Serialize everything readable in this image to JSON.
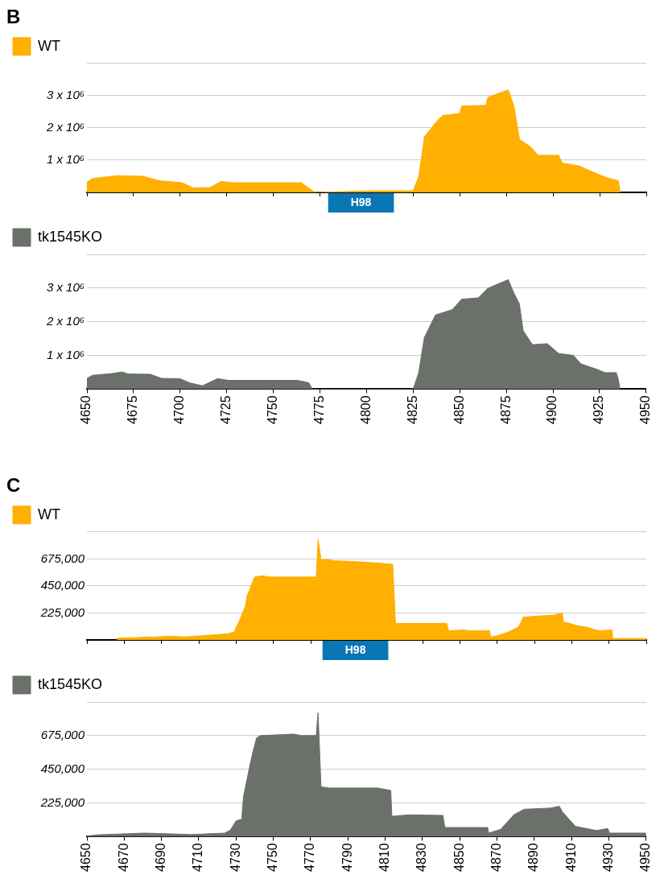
{
  "chart_data": [
    {
      "type": "area",
      "title": "B",
      "legend": "top left",
      "grid": "y",
      "tick_labels": "y",
      "xlim": [
        4650,
        4950
      ],
      "xticks": [
        4650,
        4675,
        4700,
        4725,
        4750,
        4775,
        4800,
        4825,
        4850,
        4875,
        4900,
        4925,
        4950
      ],
      "ylim": [
        0,
        4000000
      ],
      "yticks": [
        {
          "value": 1000000,
          "label": "1 x 10⁶"
        },
        {
          "value": 2000000,
          "label": "2 x 10⁶"
        },
        {
          "value": 3000000,
          "label": "3 x 10⁶"
        },
        {
          "value": 4000000,
          "label": null
        }
      ],
      "annotations": [
        {
          "text": "H98",
          "x": 4797,
          "y": 0
        }
      ],
      "series": [
        {
          "name": "WT",
          "color": "#ffb000",
          "x": [
            4650,
            4653,
            4666,
            4680,
            4689,
            4701,
            4707,
            4716,
            4722,
            4728,
            4765,
            4771,
            4773,
            4802,
            4825,
            4828,
            4831,
            4838,
            4841,
            4850,
            4851,
            4864,
            4865,
            4876,
            4879,
            4882,
            4888,
            4892,
            4903,
            4905,
            4914,
            4921,
            4929,
            4935,
            4936
          ],
          "values": [
            320000,
            430000,
            520000,
            500000,
            360000,
            300000,
            140000,
            150000,
            340000,
            300000,
            300000,
            50000,
            0,
            50000,
            50000,
            500000,
            1730000,
            2230000,
            2390000,
            2450000,
            2680000,
            2700000,
            2950000,
            3180000,
            2680000,
            1640000,
            1410000,
            1150000,
            1150000,
            910000,
            820000,
            640000,
            450000,
            360000,
            0
          ]
        }
      ]
    },
    {
      "type": "area",
      "legend": "top left",
      "grid": "y",
      "xlim": [
        4650,
        4950
      ],
      "xticks": [
        4650,
        4675,
        4700,
        4725,
        4750,
        4775,
        4800,
        4825,
        4850,
        4875,
        4900,
        4925,
        4950
      ],
      "ylim": [
        0,
        4000000
      ],
      "yticks": [
        {
          "value": 1000000,
          "label": "1 x 10⁶"
        },
        {
          "value": 2000000,
          "label": "2 x 10⁶"
        },
        {
          "value": 3000000,
          "label": "3 x 10⁶"
        },
        {
          "value": 4000000,
          "label": null
        }
      ],
      "series": [
        {
          "name": "tk1545KO",
          "color": "#6b706b",
          "x": [
            4650,
            4653,
            4663,
            4669,
            4672,
            4684,
            4690,
            4700,
            4705,
            4712,
            4720,
            4726,
            4763,
            4769,
            4771,
            4825,
            4828,
            4831,
            4837,
            4846,
            4851,
            4860,
            4865,
            4876,
            4879,
            4882,
            4884,
            4889,
            4897,
            4903,
            4911,
            4915,
            4923,
            4928,
            4934,
            4935,
            4936
          ],
          "values": [
            320000,
            410000,
            460000,
            510000,
            450000,
            440000,
            320000,
            310000,
            190000,
            100000,
            310000,
            260000,
            260000,
            190000,
            0,
            0,
            490000,
            1530000,
            2200000,
            2360000,
            2670000,
            2710000,
            2990000,
            3250000,
            2860000,
            2530000,
            1740000,
            1320000,
            1350000,
            1060000,
            1000000,
            750000,
            600000,
            490000,
            490000,
            310000,
            0
          ]
        }
      ]
    },
    {
      "type": "area",
      "title": "C",
      "legend": "top left",
      "grid": "y",
      "tick_labels": "y",
      "xlim": [
        4650,
        4950
      ],
      "xticks": [
        4650,
        4670,
        4690,
        4710,
        4730,
        4750,
        4770,
        4790,
        4810,
        4830,
        4850,
        4870,
        4890,
        4910,
        4930,
        4950
      ],
      "ylim": [
        0,
        900000
      ],
      "yticks": [
        {
          "value": 225000,
          "label": "225,000"
        },
        {
          "value": 450000,
          "label": "450,000"
        },
        {
          "value": 675000,
          "label": "675,000"
        },
        {
          "value": 900000,
          "label": null
        }
      ],
      "annotations": [
        {
          "text": "H98",
          "x": 4794,
          "y": 0
        }
      ],
      "series": [
        {
          "name": "WT",
          "color": "#ffb000",
          "x": [
            4666,
            4696,
            4703,
            4725,
            4729,
            4730,
            4731,
            4735,
            4736,
            4737,
            4739,
            4740,
            4744,
            4748,
            4773,
            4774,
            4775.6,
            4779,
            4782,
            4792,
            4807,
            4814,
            4815.5,
            4843,
            4844,
            4852,
            4855,
            4866,
            4866.5,
            4870,
            4876,
            4881.5,
            4884,
            4891,
            4900,
            4905,
            4905.5,
            4909,
            4913,
            4918,
            4924.5,
            4931.6,
            4932,
            4950
          ],
          "values": [
            14000,
            31000,
            25000,
            50000,
            66000,
            107000,
            132000,
            283000,
            376000,
            407000,
            489000,
            524000,
            535000,
            524000,
            524000,
            840000,
            665000,
            671000,
            661000,
            654000,
            640000,
            630000,
            138000,
            138000,
            76000,
            83000,
            76000,
            76000,
            25000,
            35000,
            66000,
            107000,
            190000,
            198000,
            206000,
            225000,
            149000,
            138000,
            118000,
            107000,
            76000,
            83000,
            12000,
            12000
          ]
        }
      ]
    },
    {
      "type": "area",
      "legend": "top left",
      "grid": "y",
      "xlim": [
        4650,
        4950
      ],
      "xticks": [
        4650,
        4670,
        4690,
        4710,
        4730,
        4750,
        4770,
        4790,
        4810,
        4830,
        4850,
        4870,
        4890,
        4910,
        4930,
        4950
      ],
      "ylim": [
        0,
        900000
      ],
      "yticks": [
        {
          "value": 225000,
          "label": "225,000"
        },
        {
          "value": 450000,
          "label": "450,000"
        },
        {
          "value": 675000,
          "label": "675,000"
        },
        {
          "value": 900000,
          "label": null
        }
      ],
      "series": [
        {
          "name": "tk1545KO",
          "color": "#6b706b",
          "x": [
            4650,
            4655,
            4681,
            4706,
            4724,
            4727,
            4730,
            4733,
            4734,
            4736,
            4737,
            4739,
            4741,
            4743,
            4761,
            4765,
            4773,
            4774,
            4775.6,
            4780,
            4806,
            4813,
            4813.6,
            4823,
            4841,
            4842,
            4865,
            4865.5,
            4872,
            4879,
            4884.5,
            4898.5,
            4903.5,
            4905,
            4910.6,
            4912,
            4923.4,
            4929.4,
            4930.4,
            4950
          ],
          "values": [
            4000,
            12000,
            24000,
            14000,
            24000,
            45000,
            106000,
            116000,
            268000,
            390000,
            451000,
            563000,
            659000,
            675000,
            685000,
            675000,
            675000,
            827000,
            333000,
            325000,
            325000,
            309000,
            136000,
            146000,
            142000,
            61000,
            61000,
            24000,
            49000,
            146000,
            183000,
            191000,
            203000,
            167000,
            89000,
            69000,
            41000,
            55000,
            24000,
            24000
          ]
        }
      ]
    }
  ]
}
